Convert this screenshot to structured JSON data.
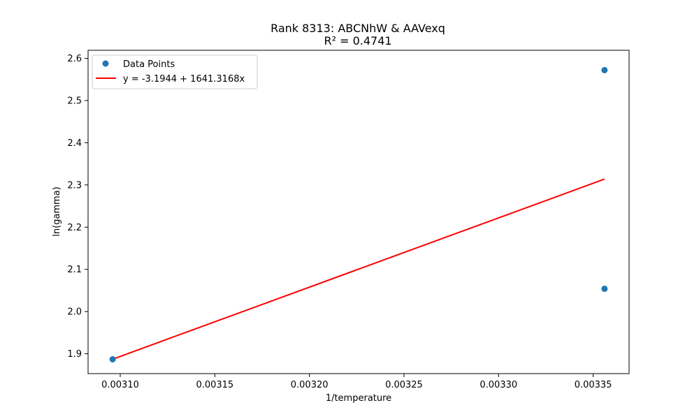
{
  "chart_data": {
    "type": "scatter",
    "title": "Rank 8313: ABCNhW & AAVexq",
    "subtitle": "R² = 0.4741",
    "xlabel": "1/temperature",
    "ylabel": "ln(gamma)",
    "xlim": [
      0.003083,
      0.003369
    ],
    "ylim": [
      1.853,
      2.619
    ],
    "xticks": [
      0.0031,
      0.00315,
      0.0032,
      0.00325,
      0.0033,
      0.00335
    ],
    "xtick_labels": [
      "0.00310",
      "0.00315",
      "0.00320",
      "0.00325",
      "0.00330",
      "0.00335"
    ],
    "yticks": [
      1.9,
      2.0,
      2.1,
      2.2,
      2.3,
      2.4,
      2.5,
      2.6
    ],
    "ytick_labels": [
      "1.9",
      "2.0",
      "2.1",
      "2.2",
      "2.3",
      "2.4",
      "2.5",
      "2.6"
    ],
    "legend_position": "top-left",
    "grid": false,
    "series": [
      {
        "name": "Data Points",
        "kind": "scatter",
        "color": "#1f77b4",
        "points": [
          {
            "x": 0.003096,
            "y": 1.887
          },
          {
            "x": 0.003356,
            "y": 2.054
          },
          {
            "x": 0.003356,
            "y": 2.572
          }
        ]
      },
      {
        "name": "y = -3.1944 + 1641.3168x",
        "kind": "line",
        "color": "#ff0000",
        "intercept": -3.1944,
        "slope": 1641.3168,
        "x_range": [
          0.003096,
          0.003356
        ]
      }
    ]
  }
}
